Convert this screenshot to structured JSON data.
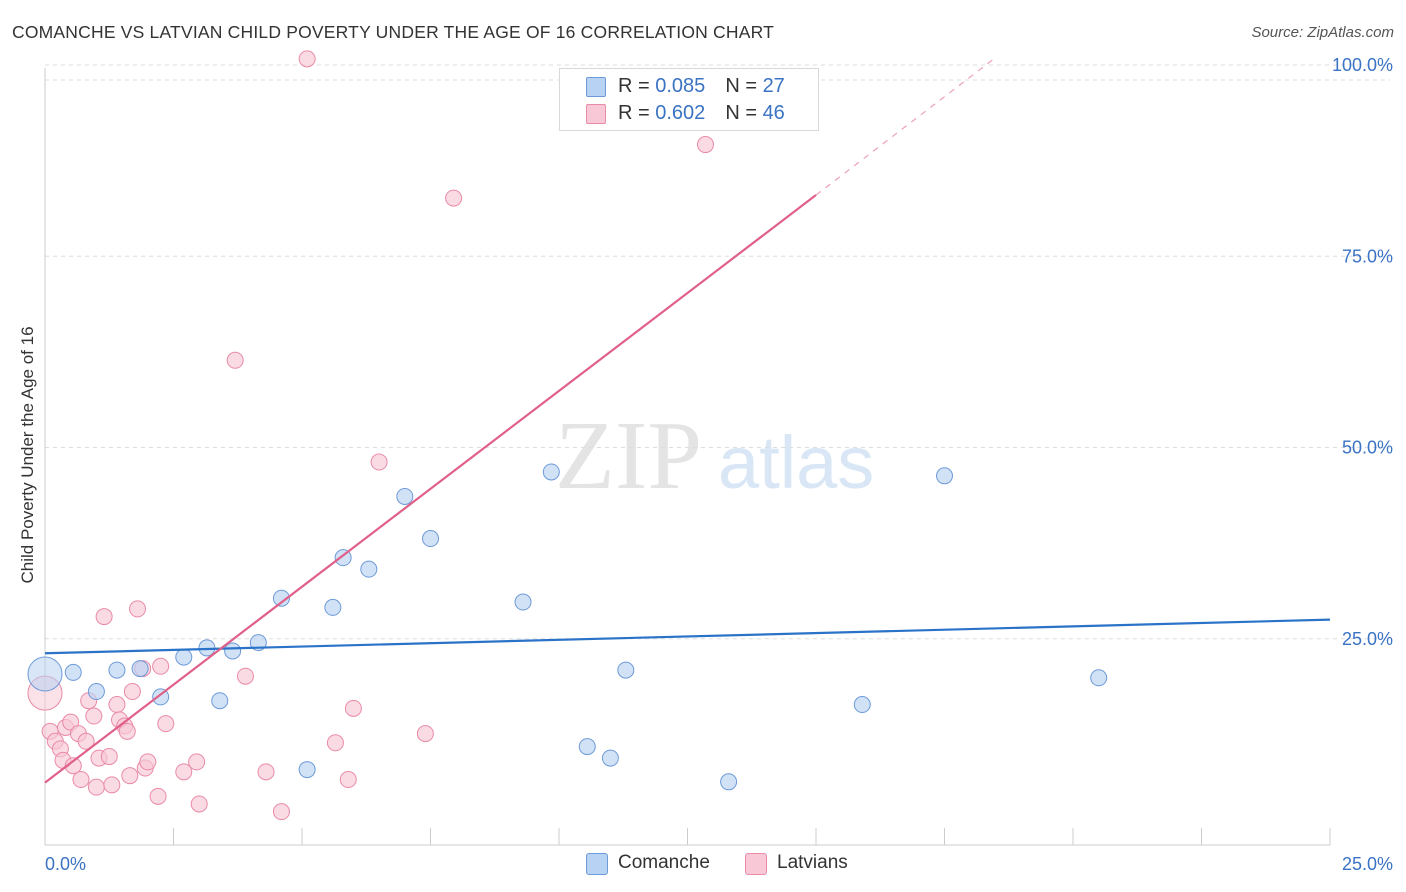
{
  "title": "COMANCHE VS LATVIAN CHILD POVERTY UNDER THE AGE OF 16 CORRELATION CHART",
  "source": "Source: ZipAtlas.com",
  "watermark": {
    "zip": "ZIP",
    "atlas": "atlas"
  },
  "colors": {
    "comanche_fill": "#b8d2f3",
    "comanche_stroke": "#6d9ad8",
    "comanche_line": "#2a73c8",
    "latvian_fill": "#f8c8d6",
    "latvian_stroke": "#e98aa6",
    "latvian_line": "#e0608a",
    "tick_label": "#3a73c4",
    "grid": "#dddddd"
  },
  "legend": {
    "comanche": {
      "r_label": "R = ",
      "r_value": "0.085",
      "n_label": "N = ",
      "n_value": "27"
    },
    "latvian": {
      "r_label": "R = ",
      "r_value": "0.602",
      "n_label": "N = ",
      "n_value": "46"
    }
  },
  "bottom_legend": {
    "comanche": "Comanche",
    "latvian": "Latvians"
  },
  "chart_data": {
    "type": "scatter",
    "title": "COMANCHE VS LATVIAN CHILD POVERTY UNDER THE AGE OF 16 CORRELATION CHART",
    "xlabel": "",
    "ylabel": "Child Poverty Under the Age of 16",
    "xlim": [
      0,
      25
    ],
    "ylim": [
      0,
      100
    ],
    "x_tick_labels": [
      "0.0%",
      "25.0%"
    ],
    "y_tick_labels": [
      "100.0%",
      "75.0%",
      "50.0%",
      "25.0%"
    ],
    "y_ticks": [
      100,
      75,
      50,
      25
    ],
    "grid": true,
    "legend_position": "top-center",
    "series": [
      {
        "name": "Comanche",
        "r": 0.085,
        "n": 27,
        "trend": {
          "x": [
            0,
            25
          ],
          "y": [
            23.1,
            27.5
          ]
        },
        "points": [
          {
            "x": 0.0,
            "y": 20.4,
            "big": true
          },
          {
            "x": 0.55,
            "y": 20.6
          },
          {
            "x": 1.0,
            "y": 18.1
          },
          {
            "x": 1.4,
            "y": 20.9
          },
          {
            "x": 1.85,
            "y": 21.1
          },
          {
            "x": 2.25,
            "y": 17.4
          },
          {
            "x": 2.7,
            "y": 22.6
          },
          {
            "x": 3.15,
            "y": 23.8
          },
          {
            "x": 3.4,
            "y": 16.9
          },
          {
            "x": 3.65,
            "y": 23.4
          },
          {
            "x": 4.15,
            "y": 24.5
          },
          {
            "x": 4.6,
            "y": 30.3
          },
          {
            "x": 5.1,
            "y": 7.9
          },
          {
            "x": 5.6,
            "y": 29.1
          },
          {
            "x": 5.8,
            "y": 35.6
          },
          {
            "x": 6.3,
            "y": 34.1
          },
          {
            "x": 7.0,
            "y": 43.6
          },
          {
            "x": 7.5,
            "y": 38.1
          },
          {
            "x": 9.3,
            "y": 29.8
          },
          {
            "x": 9.85,
            "y": 46.8
          },
          {
            "x": 10.55,
            "y": 10.9
          },
          {
            "x": 11.0,
            "y": 9.4
          },
          {
            "x": 11.3,
            "y": 20.9
          },
          {
            "x": 13.3,
            "y": 6.3
          },
          {
            "x": 15.9,
            "y": 16.4
          },
          {
            "x": 17.5,
            "y": 46.3
          },
          {
            "x": 20.5,
            "y": 19.9
          }
        ]
      },
      {
        "name": "Latvians",
        "r": 0.602,
        "n": 46,
        "trend": {
          "x": [
            0,
            15
          ],
          "y": [
            6.2,
            83.0
          ]
        },
        "trend_dashed": {
          "x": [
            15,
            18.5
          ],
          "y": [
            83.0,
            101.0
          ]
        },
        "points": [
          {
            "x": 0.0,
            "y": 17.9,
            "big": true
          },
          {
            "x": 0.1,
            "y": 12.9
          },
          {
            "x": 0.2,
            "y": 11.6
          },
          {
            "x": 0.3,
            "y": 10.6
          },
          {
            "x": 0.35,
            "y": 9.1
          },
          {
            "x": 0.4,
            "y": 13.4
          },
          {
            "x": 0.5,
            "y": 14.1
          },
          {
            "x": 0.55,
            "y": 8.4
          },
          {
            "x": 0.65,
            "y": 12.6
          },
          {
            "x": 0.7,
            "y": 6.6
          },
          {
            "x": 0.8,
            "y": 11.6
          },
          {
            "x": 0.85,
            "y": 16.9
          },
          {
            "x": 0.95,
            "y": 14.9
          },
          {
            "x": 1.0,
            "y": 5.6
          },
          {
            "x": 1.05,
            "y": 9.4
          },
          {
            "x": 1.15,
            "y": 27.9
          },
          {
            "x": 1.25,
            "y": 9.6
          },
          {
            "x": 1.3,
            "y": 5.9
          },
          {
            "x": 1.4,
            "y": 16.4
          },
          {
            "x": 1.45,
            "y": 14.4
          },
          {
            "x": 1.55,
            "y": 13.6
          },
          {
            "x": 1.6,
            "y": 12.9
          },
          {
            "x": 1.65,
            "y": 7.1
          },
          {
            "x": 1.7,
            "y": 18.1
          },
          {
            "x": 1.8,
            "y": 28.9
          },
          {
            "x": 1.9,
            "y": 21.1
          },
          {
            "x": 1.95,
            "y": 8.1
          },
          {
            "x": 2.0,
            "y": 8.9
          },
          {
            "x": 2.2,
            "y": 4.4
          },
          {
            "x": 2.25,
            "y": 21.4
          },
          {
            "x": 2.35,
            "y": 13.9
          },
          {
            "x": 2.7,
            "y": 7.6
          },
          {
            "x": 2.95,
            "y": 8.9
          },
          {
            "x": 3.0,
            "y": 3.4
          },
          {
            "x": 3.7,
            "y": 61.4
          },
          {
            "x": 3.9,
            "y": 20.1
          },
          {
            "x": 4.3,
            "y": 7.6
          },
          {
            "x": 4.6,
            "y": 2.4
          },
          {
            "x": 5.1,
            "y": 100.8
          },
          {
            "x": 5.65,
            "y": 11.4
          },
          {
            "x": 5.9,
            "y": 6.6
          },
          {
            "x": 6.0,
            "y": 15.9
          },
          {
            "x": 6.5,
            "y": 48.1
          },
          {
            "x": 7.4,
            "y": 12.6
          },
          {
            "x": 7.95,
            "y": 82.6
          },
          {
            "x": 12.85,
            "y": 89.6
          }
        ]
      }
    ]
  }
}
